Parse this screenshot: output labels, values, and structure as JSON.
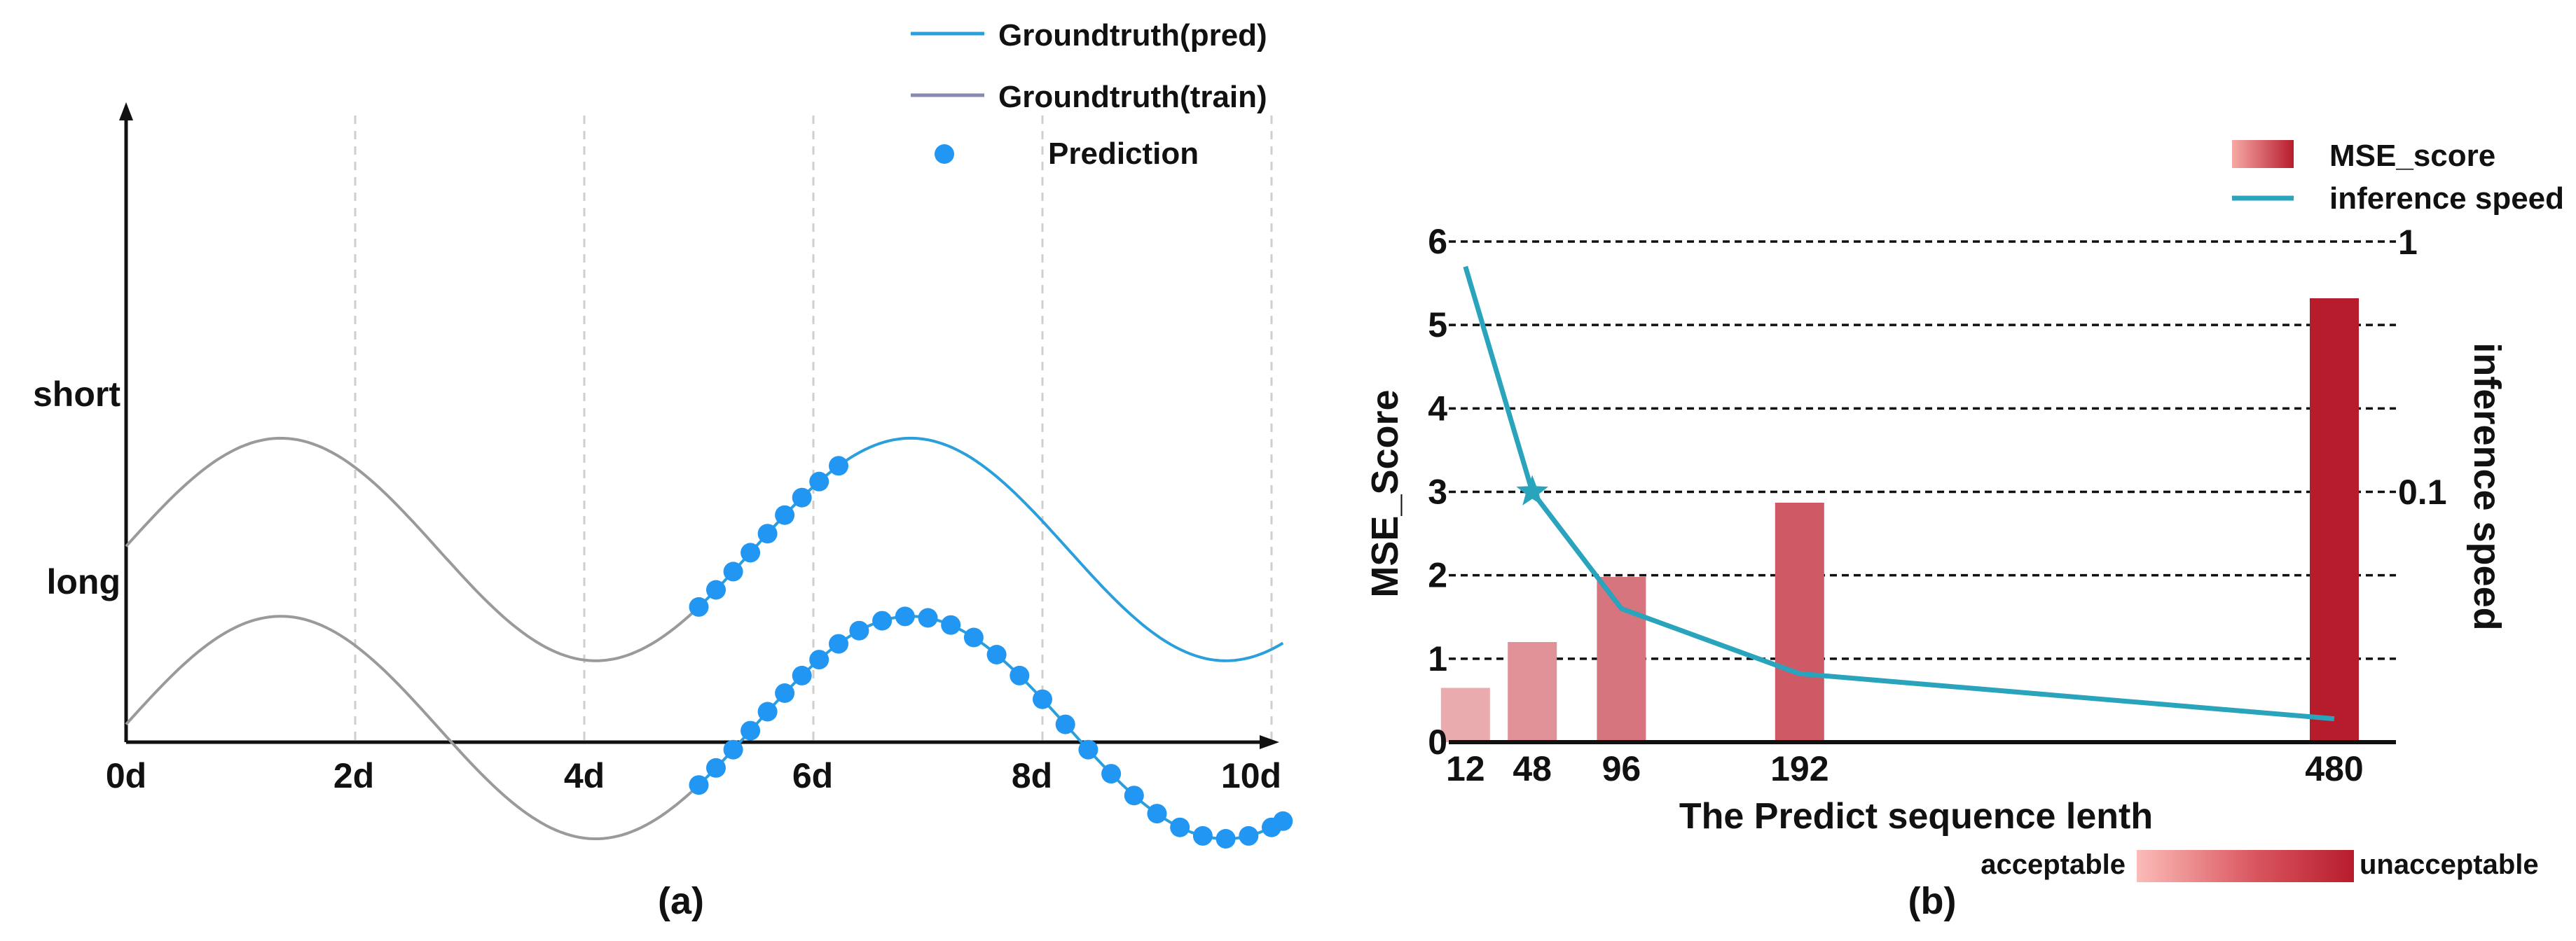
{
  "colors": {
    "pred": "#2b9fdb",
    "train": "#9a9a9a",
    "train_legend": "#8a8ab0",
    "dots": "#2196f3",
    "speed": "#2aa3bd",
    "grid": "#cfcfcf",
    "axis": "#111111",
    "bar_low": "#fde4e2",
    "bar_high": "#b71c2c"
  },
  "chart_data": [
    {
      "type": "line",
      "panel_caption": "(a)",
      "legend": {
        "placement": "top-right",
        "pred": "Groundtruth(pred)",
        "train": "Groundtruth(train)",
        "prediction": "Prediction"
      },
      "x": {
        "min": 0,
        "max": 10,
        "ticks": [
          0,
          2,
          4,
          6,
          8,
          10
        ],
        "tick_labels": [
          "0d",
          "2d",
          "4d",
          "6d",
          "8d",
          "10d"
        ],
        "grid_at": [
          2,
          4,
          6,
          8,
          10
        ]
      },
      "y": {
        "min": -1.7,
        "max": 3.9
      },
      "rows": [
        {
          "name": "short",
          "label": "short",
          "train_x": [
            0,
            5
          ],
          "pred_x": [
            5,
            10.1
          ],
          "curve": {
            "baseline": 0,
            "amplitude": 1,
            "phase_x": 1.35,
            "period": 5.5
          },
          "prediction_x": [
            5.0,
            5.15,
            5.3,
            5.45,
            5.6,
            5.75,
            5.9,
            6.05,
            6.22
          ]
        },
        {
          "name": "long",
          "label": "long",
          "train_x": [
            0,
            5
          ],
          "pred_x": [
            5,
            10.1
          ],
          "curve": {
            "baseline": -1.6,
            "amplitude": 1,
            "phase_x": 1.35,
            "period": 5.5
          },
          "prediction_x": [
            5.0,
            5.15,
            5.3,
            5.45,
            5.6,
            5.75,
            5.9,
            6.05,
            6.22,
            6.4,
            6.6,
            6.8,
            7.0,
            7.2,
            7.4,
            7.6,
            7.8,
            8.0,
            8.2,
            8.4,
            8.6,
            8.8,
            9.0,
            9.2,
            9.4,
            9.6,
            9.8,
            10.0,
            10.1
          ]
        }
      ]
    },
    {
      "type": "bar",
      "panel_caption": "(b)",
      "categories": [
        "12",
        "48",
        "96",
        "192",
        "480"
      ],
      "x_positions": [
        12,
        48,
        96,
        192,
        480
      ],
      "xlim": [
        0,
        500
      ],
      "values": [
        0.65,
        1.2,
        1.98,
        2.87,
        5.32
      ],
      "xlabel": "The Predict  sequence lenth",
      "ylabel": "MSE_Score",
      "ylim": [
        0,
        6
      ],
      "yticks": [
        0,
        1,
        2,
        3,
        4,
        5,
        6
      ],
      "grid": "dashed, y = 1..6",
      "secondary_axis": {
        "label": "inference speed",
        "ticks": [
          {
            "label": "1",
            "at_y": 6
          },
          {
            "label": "0.1",
            "at_y": 3
          }
        ]
      },
      "line_series": {
        "name": "inference speed",
        "values_on_primary": [
          5.7,
          3.0,
          1.6,
          0.82,
          0.28
        ],
        "marker": "star at 48"
      },
      "legend": {
        "placement": "top-right",
        "bar": "MSE_score",
        "line": "inference speed"
      },
      "colorbar": {
        "low": "acceptable",
        "high": "unacceptable"
      }
    }
  ]
}
